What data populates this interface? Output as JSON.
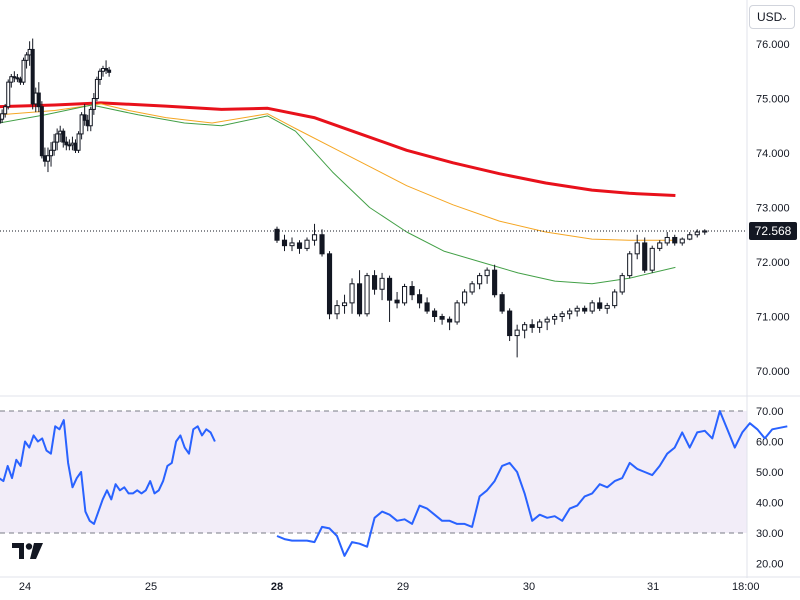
{
  "toolbar": {
    "currency": "USD"
  },
  "last_price_label": "72.568",
  "chart_data": [
    {
      "type": "candlestick",
      "ylim": [
        69.6,
        76.6
      ],
      "xlim": [
        0,
        40
      ],
      "price_ticks": [
        "76.000",
        "75.000",
        "74.000",
        "73.000",
        "72.000",
        "71.000",
        "70.000"
      ],
      "price_tick_values": [
        76,
        75,
        74,
        73,
        72,
        71,
        70
      ],
      "date_ticks": [
        {
          "label": "24",
          "x": 1.4,
          "bold": false
        },
        {
          "label": "25",
          "x": 8.2,
          "bold": false
        },
        {
          "label": "28",
          "x": 15.0,
          "bold": true
        },
        {
          "label": "29",
          "x": 21.8,
          "bold": false
        },
        {
          "label": "30",
          "x": 28.6,
          "bold": false
        },
        {
          "label": "31",
          "x": 35.3,
          "bold": false
        },
        {
          "label": "18:00",
          "x": 40.3,
          "bold": false
        }
      ],
      "last_price": 72.568,
      "ohlc": [
        [
          74.55,
          74.7,
          74.45,
          74.62
        ],
        [
          74.62,
          74.8,
          74.55,
          74.72
        ],
        [
          74.72,
          74.9,
          74.65,
          74.85
        ],
        [
          74.85,
          75.35,
          74.8,
          75.3
        ],
        [
          75.3,
          75.45,
          75.2,
          75.4
        ],
        [
          75.4,
          75.5,
          75.3,
          75.38
        ],
        [
          75.38,
          75.45,
          75.3,
          75.36
        ],
        [
          75.36,
          75.4,
          75.25,
          75.3
        ],
        [
          75.3,
          75.75,
          75.25,
          75.7
        ],
        [
          75.7,
          75.85,
          75.55,
          75.8
        ],
        [
          75.8,
          76.05,
          75.6,
          75.9
        ],
        [
          75.9,
          76.1,
          74.8,
          74.9
        ],
        [
          74.9,
          75.2,
          74.75,
          75.1
        ],
        [
          75.1,
          75.3,
          74.75,
          74.85
        ],
        [
          74.85,
          74.95,
          73.9,
          73.95
        ],
        [
          73.95,
          74.1,
          73.75,
          73.85
        ],
        [
          73.85,
          74.1,
          73.65,
          73.95
        ],
        [
          73.95,
          74.2,
          73.75,
          74.05
        ],
        [
          74.05,
          74.35,
          73.95,
          74.2
        ],
        [
          74.2,
          74.45,
          74.05,
          74.35
        ],
        [
          74.35,
          74.5,
          74.2,
          74.4
        ],
        [
          74.4,
          74.45,
          74.1,
          74.2
        ],
        [
          74.2,
          74.3,
          74.05,
          74.15
        ],
        [
          74.15,
          74.25,
          74.05,
          74.15
        ],
        [
          74.15,
          74.3,
          74.05,
          74.18
        ],
        [
          74.18,
          74.25,
          74.0,
          74.05
        ],
        [
          74.05,
          74.4,
          74.0,
          74.35
        ],
        [
          74.35,
          74.75,
          74.25,
          74.7
        ],
        [
          74.7,
          74.9,
          74.5,
          74.6
        ],
        [
          74.6,
          74.7,
          74.4,
          74.5
        ],
        [
          74.5,
          74.85,
          74.4,
          74.8
        ],
        [
          74.8,
          75.1,
          74.7,
          75.0
        ],
        [
          75.0,
          75.4,
          74.95,
          75.35
        ],
        [
          75.35,
          75.55,
          75.25,
          75.5
        ],
        [
          75.5,
          75.6,
          75.4,
          75.55
        ],
        [
          75.55,
          75.7,
          75.45,
          75.52
        ],
        [
          75.52,
          75.58,
          75.4,
          75.48
        ]
      ],
      "ohlc_x0": 0.0,
      "ohlc_dx": 0.165,
      "ohlc2": [
        [
          72.6,
          72.65,
          72.35,
          72.4
        ],
        [
          72.4,
          72.5,
          72.2,
          72.3
        ],
        [
          72.3,
          72.45,
          72.2,
          72.35
        ],
        [
          72.35,
          72.4,
          72.15,
          72.25
        ],
        [
          72.25,
          72.45,
          72.2,
          72.4
        ],
        [
          72.4,
          72.7,
          72.3,
          72.5
        ],
        [
          72.5,
          72.6,
          72.1,
          72.15
        ],
        [
          72.15,
          72.2,
          70.95,
          71.05
        ],
        [
          71.05,
          71.3,
          70.95,
          71.2
        ],
        [
          71.2,
          71.4,
          71.05,
          71.25
        ],
        [
          71.25,
          71.7,
          71.05,
          71.6
        ],
        [
          71.6,
          71.85,
          71.0,
          71.05
        ],
        [
          71.05,
          71.8,
          71.0,
          71.75
        ],
        [
          71.75,
          71.85,
          71.4,
          71.5
        ],
        [
          71.5,
          71.8,
          71.3,
          71.7
        ],
        [
          71.7,
          71.75,
          70.9,
          71.3
        ],
        [
          71.3,
          71.45,
          71.15,
          71.25
        ],
        [
          71.25,
          71.6,
          71.2,
          71.55
        ],
        [
          71.55,
          71.65,
          71.3,
          71.4
        ],
        [
          71.4,
          71.5,
          71.15,
          71.25
        ],
        [
          71.25,
          71.35,
          71.05,
          71.1
        ],
        [
          71.1,
          71.15,
          70.9,
          71.0
        ],
        [
          71.0,
          71.05,
          70.85,
          70.95
        ],
        [
          70.95,
          71.0,
          70.75,
          70.9
        ],
        [
          70.9,
          71.3,
          70.85,
          71.25
        ],
        [
          71.25,
          71.5,
          71.2,
          71.45
        ],
        [
          71.45,
          71.65,
          71.4,
          71.6
        ],
        [
          71.6,
          71.8,
          71.5,
          71.75
        ],
        [
          71.75,
          71.9,
          71.6,
          71.85
        ],
        [
          71.85,
          71.95,
          71.35,
          71.4
        ],
        [
          71.4,
          71.45,
          71.05,
          71.1
        ],
        [
          71.1,
          71.15,
          70.55,
          70.65
        ],
        [
          70.65,
          70.85,
          70.25,
          70.75
        ],
        [
          70.75,
          70.9,
          70.6,
          70.85
        ],
        [
          70.85,
          70.95,
          70.7,
          70.8
        ],
        [
          70.8,
          70.95,
          70.7,
          70.9
        ],
        [
          70.9,
          71.0,
          70.75,
          70.95
        ],
        [
          70.95,
          71.05,
          70.85,
          71.0
        ],
        [
          71.0,
          71.1,
          70.9,
          71.05
        ],
        [
          71.05,
          71.15,
          70.95,
          71.1
        ],
        [
          71.1,
          71.2,
          71.0,
          71.15
        ],
        [
          71.15,
          71.2,
          71.05,
          71.1
        ],
        [
          71.1,
          71.3,
          71.05,
          71.25
        ],
        [
          71.25,
          71.35,
          71.1,
          71.15
        ],
        [
          71.15,
          71.25,
          71.05,
          71.2
        ],
        [
          71.2,
          71.5,
          71.15,
          71.45
        ],
        [
          71.45,
          71.8,
          71.4,
          71.75
        ],
        [
          71.75,
          72.2,
          71.7,
          72.15
        ],
        [
          72.15,
          72.5,
          72.05,
          72.35
        ],
        [
          72.35,
          72.45,
          71.8,
          71.85
        ],
        [
          71.85,
          72.3,
          71.8,
          72.25
        ],
        [
          72.25,
          72.4,
          72.2,
          72.35
        ],
        [
          72.35,
          72.55,
          72.3,
          72.45
        ],
        [
          72.45,
          72.5,
          72.3,
          72.35
        ],
        [
          72.35,
          72.45,
          72.3,
          72.42
        ],
        [
          72.42,
          72.55,
          72.4,
          72.5
        ],
        [
          72.5,
          72.6,
          72.45,
          72.55
        ],
        [
          72.55,
          72.6,
          72.5,
          72.57
        ]
      ],
      "ohlc2_x0": 15.0,
      "ohlc2_dx": 0.405,
      "series": [
        {
          "color": "#e8111b",
          "width": 3,
          "points": [
            [
              0,
              74.85
            ],
            [
              3,
              74.88
            ],
            [
              5.5,
              74.92
            ],
            [
              9,
              74.86
            ],
            [
              12,
              74.8
            ],
            [
              14.5,
              74.82
            ],
            [
              17,
              74.65
            ],
            [
              19.5,
              74.35
            ],
            [
              22,
              74.05
            ],
            [
              24.5,
              73.82
            ],
            [
              27,
              73.62
            ],
            [
              29.5,
              73.45
            ],
            [
              32,
              73.32
            ],
            [
              34,
              73.26
            ],
            [
              36.5,
              73.22
            ]
          ]
        },
        {
          "color": "#f5a623",
          "width": 1,
          "points": [
            [
              0,
              74.7
            ],
            [
              3,
              74.78
            ],
            [
              5.5,
              74.9
            ],
            [
              7,
              74.78
            ],
            [
              9,
              74.65
            ],
            [
              11.5,
              74.55
            ],
            [
              14.5,
              74.72
            ],
            [
              16,
              74.45
            ],
            [
              18,
              74.1
            ],
            [
              20,
              73.75
            ],
            [
              22,
              73.4
            ],
            [
              24.5,
              73.05
            ],
            [
              27,
              72.75
            ],
            [
              29.5,
              72.55
            ],
            [
              32,
              72.42
            ],
            [
              34,
              72.4
            ],
            [
              36.5,
              72.4
            ]
          ]
        },
        {
          "color": "#43a047",
          "width": 1,
          "points": [
            [
              0,
              74.55
            ],
            [
              2.5,
              74.7
            ],
            [
              5,
              74.88
            ],
            [
              7.5,
              74.7
            ],
            [
              10,
              74.55
            ],
            [
              12,
              74.5
            ],
            [
              14.5,
              74.68
            ],
            [
              16,
              74.4
            ],
            [
              18,
              73.65
            ],
            [
              20,
              73.0
            ],
            [
              22,
              72.55
            ],
            [
              24,
              72.2
            ],
            [
              26,
              72.0
            ],
            [
              28,
              71.8
            ],
            [
              30,
              71.65
            ],
            [
              32,
              71.6
            ],
            [
              34,
              71.7
            ],
            [
              36.5,
              71.9
            ]
          ]
        }
      ]
    },
    {
      "type": "line",
      "name": "RSI",
      "ylim": [
        18.5,
        72
      ],
      "ticks": [
        "70.00",
        "60.00",
        "50.00",
        "40.00",
        "30.00",
        "20.00"
      ],
      "tick_values": [
        70,
        60,
        50,
        40,
        30,
        20
      ],
      "band": [
        30,
        70
      ],
      "color": "#2962ff",
      "x0": 0.0,
      "dx": 0.233,
      "values": [
        48,
        47,
        52,
        48,
        54,
        52,
        60,
        58,
        62,
        60,
        61,
        57,
        56,
        65,
        64,
        67,
        53,
        45,
        48,
        50,
        37,
        34,
        33,
        37,
        41,
        44,
        41,
        46,
        44,
        45,
        43,
        43,
        44,
        43,
        44,
        47,
        43,
        44,
        47,
        52,
        53,
        60,
        62,
        58,
        56,
        64,
        65,
        62,
        64,
        63,
        60
      ]
    },
    {
      "type": "line",
      "name": "RSI",
      "x0": 15.0,
      "dx": 0.405,
      "values": [
        29,
        28,
        27.5,
        27.5,
        27.5,
        27,
        32,
        31.5,
        29,
        22.5,
        27,
        26.5,
        25.5,
        35,
        37,
        36,
        34,
        34.5,
        33,
        39,
        38,
        36,
        34,
        34,
        33,
        33,
        32,
        42,
        44,
        47,
        52,
        53,
        50,
        43,
        34,
        36,
        35,
        35.5,
        34,
        38,
        39,
        42,
        43,
        46,
        45,
        47,
        48,
        53,
        51,
        50,
        49,
        52,
        56,
        58,
        63,
        58,
        63,
        63.5,
        61,
        70,
        64,
        58,
        63,
        66,
        64,
        61,
        64,
        64.5,
        65
      ]
    }
  ]
}
